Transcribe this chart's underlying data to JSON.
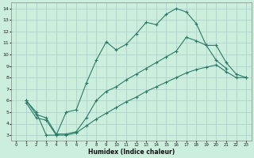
{
  "xlabel": "Humidex (Indice chaleur)",
  "bg_color": "#cceedd",
  "grid_color": "#aacccc",
  "line_color": "#2a7a6a",
  "xlim": [
    -0.5,
    23.5
  ],
  "ylim": [
    2.5,
    14.5
  ],
  "xticks": [
    0,
    1,
    2,
    3,
    4,
    5,
    6,
    7,
    8,
    9,
    10,
    11,
    12,
    13,
    14,
    15,
    16,
    17,
    18,
    19,
    20,
    21,
    22,
    23
  ],
  "yticks": [
    3,
    4,
    5,
    6,
    7,
    8,
    9,
    10,
    11,
    12,
    13,
    14
  ],
  "curve1": {
    "x": [
      1,
      2,
      3,
      4,
      5,
      6,
      7,
      8,
      9,
      10,
      11,
      12,
      13,
      14,
      15,
      16,
      17,
      18,
      19,
      20,
      21
    ],
    "y": [
      6.0,
      5.0,
      3.0,
      3.0,
      5.0,
      5.2,
      7.5,
      9.5,
      11.1,
      10.4,
      10.9,
      11.8,
      12.8,
      12.6,
      13.5,
      14.0,
      13.7,
      12.7,
      10.8,
      9.5,
      8.8
    ]
  },
  "curve2": {
    "x": [
      1,
      2,
      3,
      4,
      5,
      6,
      7,
      8,
      9,
      10,
      11,
      12,
      13,
      14,
      15,
      16,
      17,
      18,
      19,
      20,
      21,
      22,
      23
    ],
    "y": [
      6.0,
      4.8,
      4.5,
      3.1,
      3.1,
      3.3,
      4.5,
      6.0,
      6.8,
      7.2,
      7.8,
      8.3,
      8.8,
      9.3,
      9.8,
      10.3,
      11.5,
      11.2,
      10.8,
      10.8,
      9.3,
      8.3,
      8.0
    ]
  },
  "curve3": {
    "x": [
      1,
      2,
      3,
      4,
      5,
      6,
      7,
      8,
      9,
      10,
      11,
      12,
      13,
      14,
      15,
      16,
      17,
      18,
      19,
      20,
      21,
      22,
      23
    ],
    "y": [
      5.8,
      4.5,
      4.3,
      3.0,
      3.0,
      3.2,
      3.8,
      4.4,
      4.9,
      5.4,
      5.9,
      6.3,
      6.8,
      7.2,
      7.6,
      8.0,
      8.4,
      8.7,
      8.9,
      9.1,
      8.5,
      8.0,
      8.0
    ]
  }
}
